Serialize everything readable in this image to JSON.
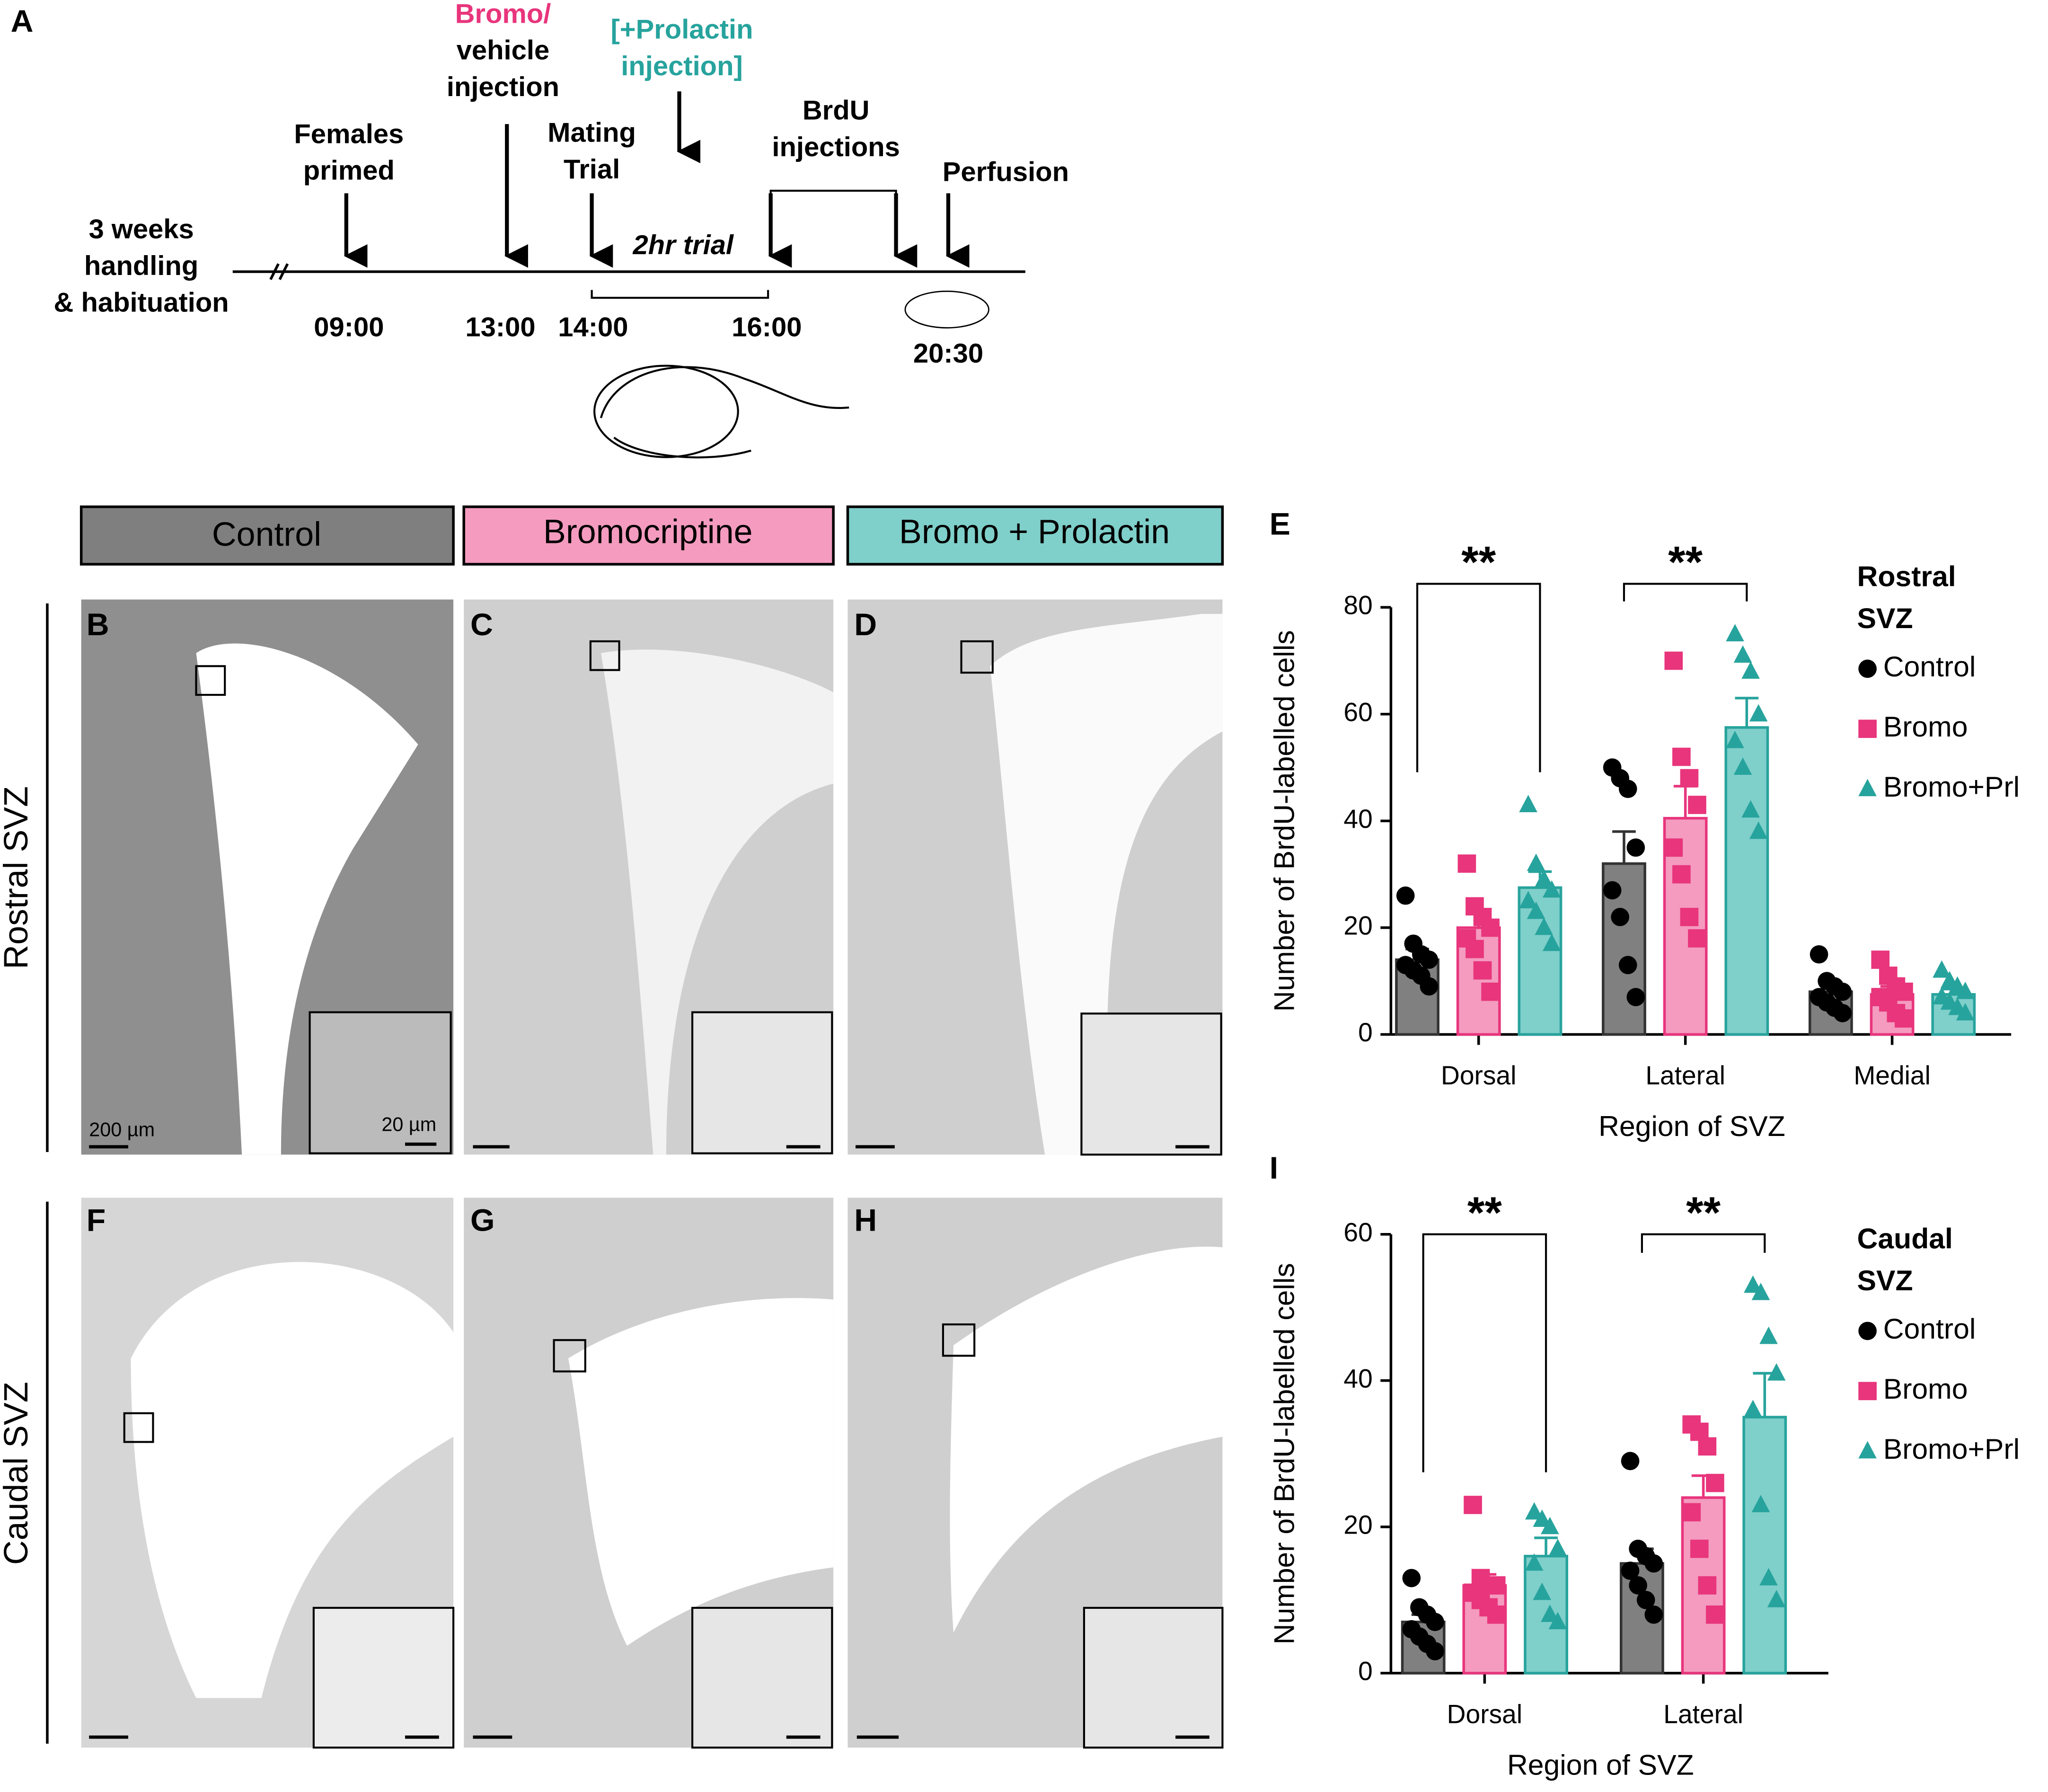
{
  "panel_labels": [
    "A",
    "E",
    "I"
  ],
  "timeline": {
    "left_text": [
      "3 weeks",
      "handling",
      "& habituation"
    ],
    "primed": [
      "Females",
      "primed"
    ],
    "bromo": [
      "Bromo/",
      "vehicle",
      "injection"
    ],
    "mating": [
      "Mating",
      "Trial"
    ],
    "prolactin": [
      "[+Prolactin",
      "injection]"
    ],
    "brdu": [
      "BrdU",
      "injections"
    ],
    "perfusion": "Perfusion",
    "trial": "2hr trial",
    "times": [
      "09:00",
      "13:00",
      "14:00",
      "16:00",
      "20:30"
    ]
  },
  "micrographs": {
    "columns": [
      "Control",
      "Bromocriptine",
      "Bromo + Prolactin"
    ],
    "rows": [
      "Rostral SVZ",
      "Caudal SVZ"
    ],
    "panels": [
      "B",
      "C",
      "D",
      "F",
      "G",
      "H"
    ],
    "scale_bars": [
      "200 µm",
      "20 µm"
    ]
  },
  "chart_data": [
    {
      "type": "bar",
      "y_label": "Number of BrdU-labelled cells",
      "x_label": "Region of SVZ",
      "legend_title": [
        "Rostral",
        "SVZ"
      ],
      "significance": [
        "**",
        "**"
      ],
      "categories": [
        "Dorsal",
        "Lateral",
        "Medial"
      ],
      "ylim": [
        0,
        80
      ],
      "yticks": [
        0,
        20,
        40,
        60,
        80
      ],
      "series": [
        {
          "name": "Control",
          "color": "#808080",
          "point_color": "#000000",
          "marker": "circle",
          "values": [
            14,
            32,
            8
          ],
          "errors": [
            2,
            6,
            1.5
          ],
          "points": [
            [
              26,
              17,
              15,
              14,
              13,
              12,
              11,
              9
            ],
            [
              50,
              48,
              46,
              35,
              27,
              22,
              13,
              7
            ],
            [
              15,
              10,
              9,
              8,
              7,
              6,
              5,
              4
            ]
          ]
        },
        {
          "name": "Bromo",
          "color": "#f49bbf",
          "point_color": "#e8357c",
          "marker": "square",
          "values": [
            20,
            40.5,
            7.5
          ],
          "errors": [
            3,
            6,
            1.5
          ],
          "points": [
            [
              32,
              24,
              22,
              20,
              18,
              16,
              12,
              8
            ],
            [
              70,
              52,
              48,
              43,
              35,
              30,
              22,
              18
            ],
            [
              14,
              11,
              9,
              8,
              7,
              6,
              4,
              3
            ]
          ]
        },
        {
          "name": "Bromo+Prl",
          "color": "#7fcfca",
          "point_color": "#27a39d",
          "marker": "triangle",
          "values": [
            27.5,
            57.5,
            7.5
          ],
          "errors": [
            3,
            5.5,
            1
          ],
          "points": [
            [
              43,
              32,
              29,
              27,
              25,
              23,
              20,
              17
            ],
            [
              75,
              71,
              68,
              60,
              55,
              50,
              42,
              38
            ],
            [
              12,
              10,
              9,
              8,
              7,
              6,
              5,
              4
            ]
          ]
        }
      ]
    },
    {
      "type": "bar",
      "y_label": "Number of BrdU-labelled cells",
      "x_label": "Region of SVZ",
      "legend_title": [
        "Caudal",
        "SVZ"
      ],
      "significance": [
        "**",
        "**"
      ],
      "categories": [
        "Dorsal",
        "Lateral"
      ],
      "ylim": [
        0,
        60
      ],
      "yticks": [
        0,
        20,
        40,
        60
      ],
      "series": [
        {
          "name": "Control",
          "color": "#808080",
          "point_color": "#000000",
          "marker": "circle",
          "values": [
            7,
            15
          ],
          "errors": [
            1,
            2
          ],
          "points": [
            [
              13,
              9,
              8,
              7,
              6,
              5,
              4,
              3
            ],
            [
              29,
              17,
              16,
              15,
              14,
              12,
              10,
              8
            ]
          ]
        },
        {
          "name": "Bromo",
          "color": "#f49bbf",
          "point_color": "#e8357c",
          "marker": "square",
          "values": [
            12,
            24
          ],
          "errors": [
            1.5,
            3
          ],
          "points": [
            [
              23,
              13,
              12,
              12,
              11,
              10,
              9,
              8
            ],
            [
              34,
              33,
              31,
              26,
              22,
              17,
              12,
              8
            ]
          ]
        },
        {
          "name": "Bromo+Prl",
          "color": "#7fcfca",
          "point_color": "#27a39d",
          "marker": "triangle",
          "values": [
            16,
            35
          ],
          "errors": [
            2.5,
            6
          ],
          "points": [
            [
              22,
              21,
              20,
              17,
              15,
              11,
              8,
              7
            ],
            [
              53,
              52,
              46,
              41,
              36,
              23,
              13,
              10
            ]
          ]
        }
      ]
    }
  ]
}
